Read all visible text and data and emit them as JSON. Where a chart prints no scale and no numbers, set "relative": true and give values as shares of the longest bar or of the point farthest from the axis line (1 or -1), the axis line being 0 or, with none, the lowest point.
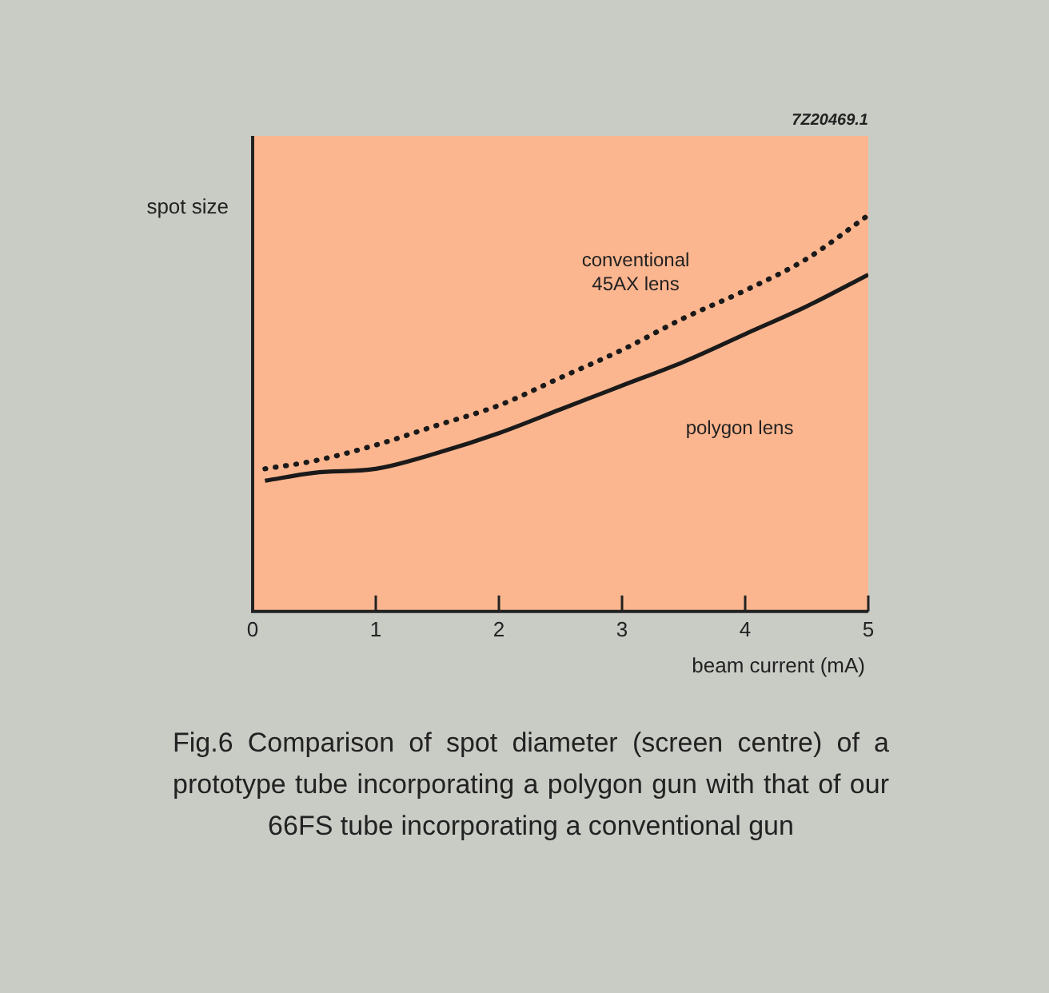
{
  "chart_data": {
    "type": "line",
    "relative": true,
    "xlabel": "beam current (mA)",
    "ylabel": "spot size",
    "xlim": [
      0,
      5
    ],
    "xticks": [
      0,
      1,
      2,
      3,
      4,
      5
    ],
    "grid": false,
    "legend": false,
    "marker": "none",
    "annotations": [
      "7Z20469.1",
      "Fig.6 Comparison of spot diameter (screen centre) of a prototype tube incorporating a polygon gun with that of our 66FS tube incorporating a conventional gun"
    ],
    "series": [
      {
        "name": "conventional 45AX lens",
        "color": "#1a1a1a",
        "line_style": "dotted",
        "x": [
          0.1,
          0.5,
          1,
          1.5,
          2,
          2.5,
          3,
          3.5,
          4,
          4.5,
          5
        ],
        "values": [
          0.36,
          0.38,
          0.42,
          0.47,
          0.52,
          0.59,
          0.66,
          0.74,
          0.81,
          0.89,
          1
        ]
      },
      {
        "name": "polygon lens",
        "color": "#1a1a1a",
        "line_style": "solid",
        "x": [
          0.1,
          0.5,
          1,
          1.5,
          2,
          2.5,
          3,
          3.5,
          4,
          4.5,
          5
        ],
        "values": [
          0.33,
          0.35,
          0.36,
          0.4,
          0.45,
          0.51,
          0.57,
          0.63,
          0.7,
          0.77,
          0.85
        ]
      }
    ]
  }
}
